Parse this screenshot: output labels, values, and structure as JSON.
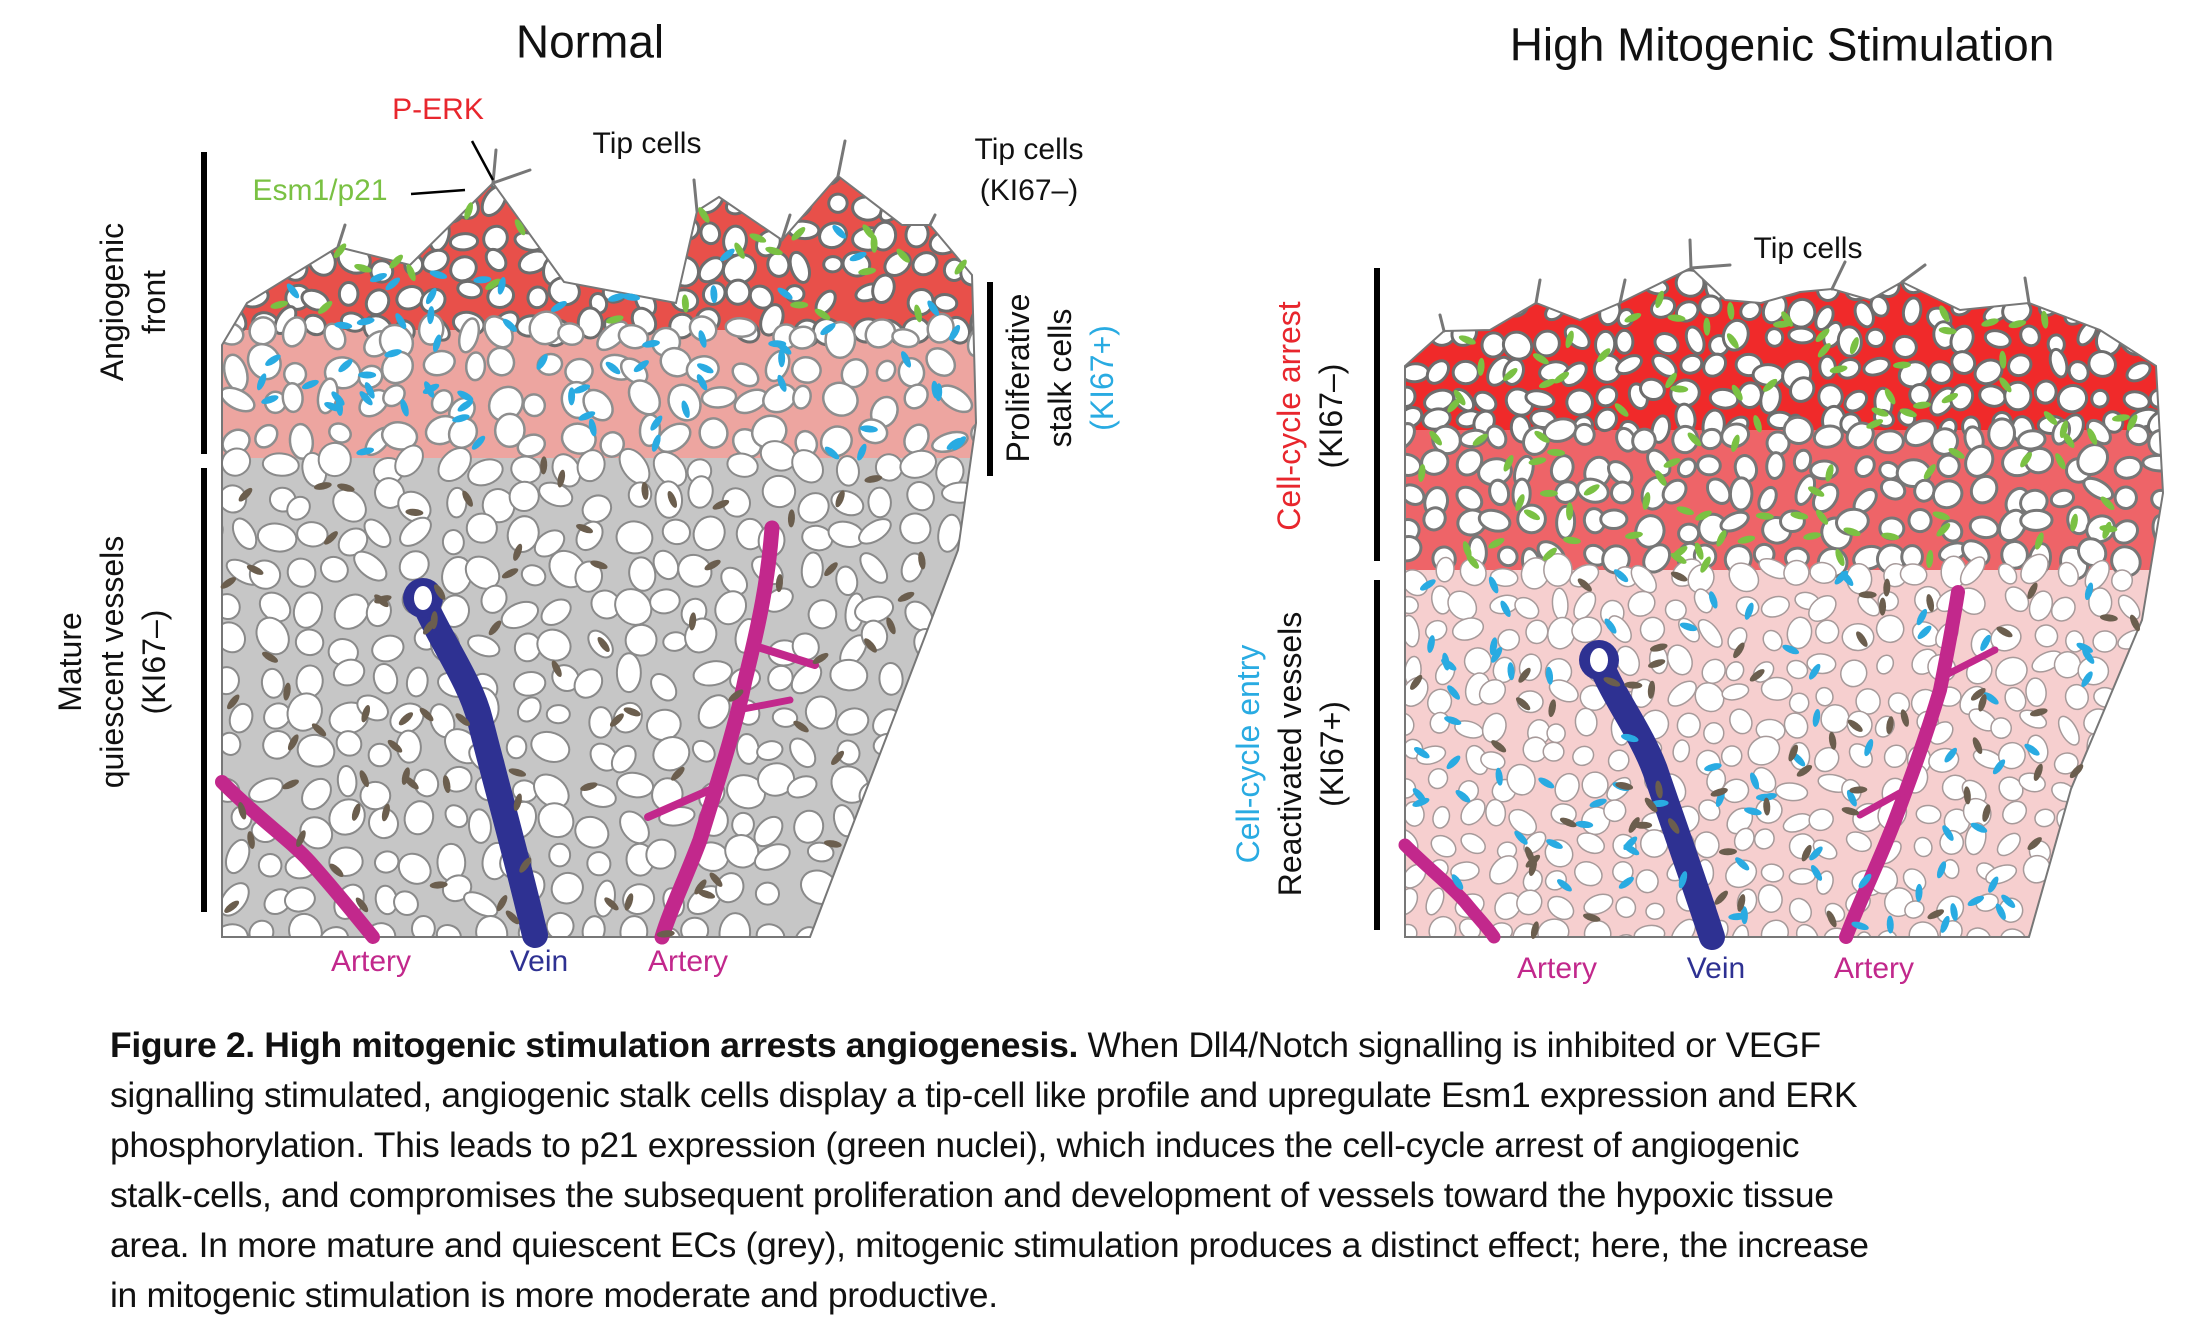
{
  "normal": {
    "title": "Normal",
    "p_erk": "P-ERK",
    "esm1": "Esm1/p21",
    "tip_cells": "Tip cells",
    "tip_cells_ki67": [
      "Tip cells",
      "(KI67–)"
    ],
    "angiogenic_front": [
      "Angiogenic",
      "front"
    ],
    "mature": [
      "Mature",
      "quiescent vessels",
      "(KI67–)"
    ],
    "proliferative": [
      "Proliferative",
      "stalk cells",
      "(KI67+)"
    ],
    "bottom": [
      "Artery",
      "Vein",
      "Artery"
    ]
  },
  "high": {
    "title": "High Mitogenic Stimulation",
    "tip_cells": "Tip cells",
    "arrest": [
      "Cell-cycle arrest",
      "(KI67–)"
    ],
    "entry": "Cell-cycle entry",
    "reactivated": [
      "Reactivated vessels",
      "(KI67+)"
    ],
    "bottom": [
      "Artery",
      "Vein",
      "Artery"
    ]
  },
  "caption": {
    "bold": "Figure 2. High mitogenic stimulation arrests angiogenesis.",
    "lines": [
      " When Dll4/Notch signalling is inhibited or VEGF",
      "signalling stimulated, angiogenic stalk cells display a tip-cell like profile and upregulate Esm1 expression and ERK",
      "phosphorylation. This leads to p21 expression (green nuclei), which induces the cell-cycle arrest of angiogenic",
      "stalk-cells, and compromises the subsequent proliferation and development of vessels toward the hypoxic tissue",
      "area. In more mature and quiescent ECs (grey), mitogenic stimulation produces a distinct effect; here, the increase",
      "in mitogenic stimulation is more moderate and productive."
    ]
  },
  "colors": {
    "p_erk": "#e8262d",
    "esm1_p21": "#7ac143",
    "ki67_pos": "#29abe2",
    "quiescent": "#c6c6c6",
    "artery": "#c2288c",
    "vein": "#2e3192",
    "nucleus": "#6b5e4e"
  }
}
